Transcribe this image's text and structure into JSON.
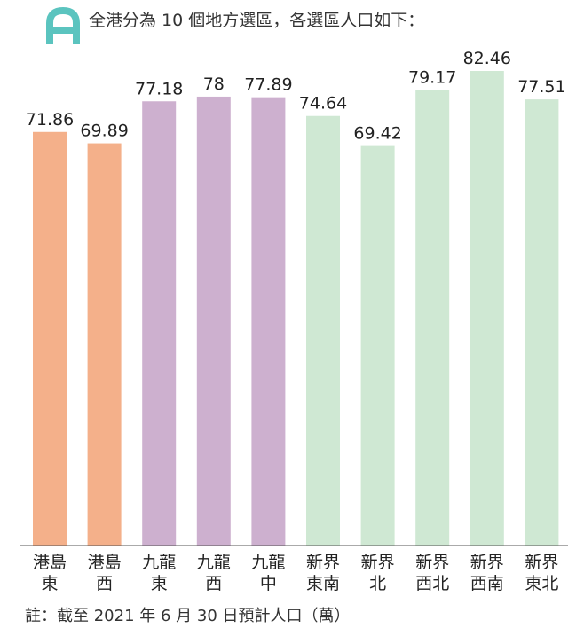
{
  "title": "全港分為 10 個地方選區，各選區人口如下：",
  "note": "註：截至 2021 年 6 月 30 日預計人口（萬）",
  "chart_data": {
    "type": "bar",
    "categories": [
      "港島東",
      "港島西",
      "九龍東",
      "九龍西",
      "九龍中",
      "新界東南",
      "新界北",
      "新界西北",
      "新界西南",
      "新界東北"
    ],
    "category_lines": [
      [
        "港島",
        "東"
      ],
      [
        "港島",
        "西"
      ],
      [
        "九龍",
        "東"
      ],
      [
        "九龍",
        "西"
      ],
      [
        "九龍",
        "中"
      ],
      [
        "新界",
        "東南"
      ],
      [
        "新界",
        "北"
      ],
      [
        "新界",
        "西北"
      ],
      [
        "新界",
        "西南"
      ],
      [
        "新界",
        "東北"
      ]
    ],
    "values": [
      71.86,
      69.89,
      77.18,
      78,
      77.89,
      74.64,
      69.42,
      79.17,
      82.46,
      77.51
    ],
    "value_labels": [
      "71.86",
      "69.89",
      "77.18",
      "78",
      "77.89",
      "74.64",
      "69.42",
      "79.17",
      "82.46",
      "77.51"
    ],
    "colors": [
      "#f4b08a",
      "#f4b08a",
      "#cdb0cf",
      "#cdb0cf",
      "#cdb0cf",
      "#cfe8d3",
      "#cfe8d3",
      "#cfe8d3",
      "#cfe8d3",
      "#cfe8d3"
    ],
    "ylim": [
      0,
      82.46
    ],
    "grid": false,
    "logo_color": "#5bc4bf"
  }
}
